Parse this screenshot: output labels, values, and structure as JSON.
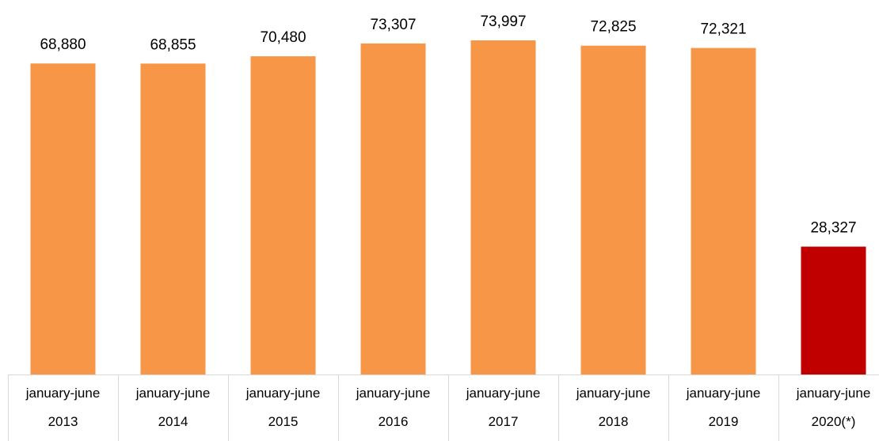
{
  "chart_data": {
    "type": "bar",
    "title": "",
    "xlabel": "",
    "ylabel": "",
    "categories": [
      [
        "january-june",
        "2013"
      ],
      [
        "january-june",
        "2014"
      ],
      [
        "january-june",
        "2015"
      ],
      [
        "january-june",
        "2016"
      ],
      [
        "january-june",
        "2017"
      ],
      [
        "january-june",
        "2018"
      ],
      [
        "january-june",
        "2019"
      ],
      [
        "january-june",
        "2020(*)"
      ]
    ],
    "values": [
      68880,
      68855,
      70480,
      73307,
      73997,
      72825,
      72321,
      28327
    ],
    "value_labels": [
      "68,880",
      "68,855",
      "70,480",
      "73,307",
      "73,997",
      "72,825",
      "72,321",
      "28,327"
    ],
    "ylim": [
      0,
      74700
    ],
    "grid": false,
    "colors": {
      "default_bar": "#F79646",
      "highlight_bar": "#C00000",
      "axis_line": "#D9D9D9",
      "text": "#000000"
    },
    "highlight_index": 7
  }
}
